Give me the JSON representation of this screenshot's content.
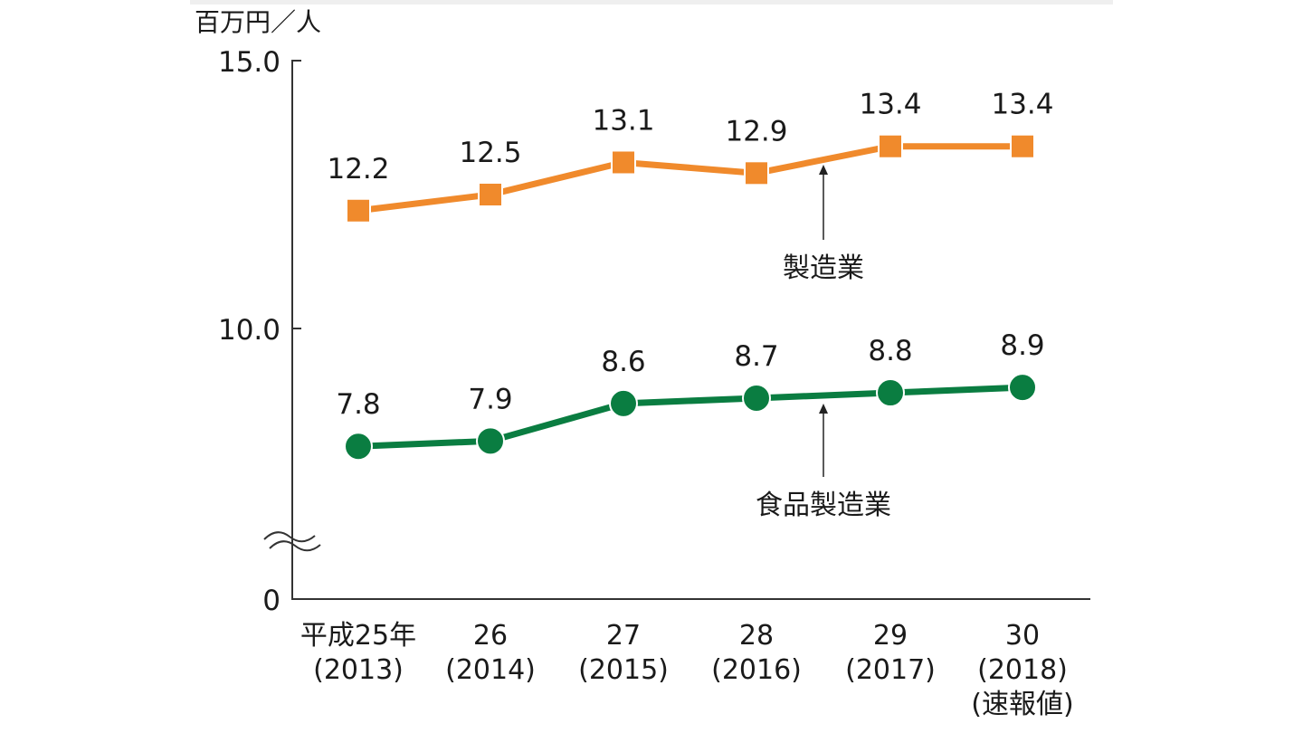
{
  "chart_data": {
    "type": "line",
    "ylabel": "百万円／人",
    "ylim": [
      0,
      15
    ],
    "y_axis_break": true,
    "yticks": [
      "0",
      "10.0",
      "15.0"
    ],
    "categories": [
      [
        "平成25年",
        "(2013)"
      ],
      [
        "26",
        "(2014)"
      ],
      [
        "27",
        "(2015)"
      ],
      [
        "28",
        "(2016)"
      ],
      [
        "29",
        "(2017)"
      ],
      [
        "30",
        "(2018)",
        "(速報値)"
      ]
    ],
    "series": [
      {
        "name": "製造業",
        "values": [
          12.2,
          12.5,
          13.1,
          12.9,
          13.4,
          13.4
        ],
        "labels": [
          "12.2",
          "12.5",
          "13.1",
          "12.9",
          "13.4",
          "13.4"
        ],
        "color": "#f08a2c",
        "marker": "square"
      },
      {
        "name": "食品製造業",
        "values": [
          7.8,
          7.9,
          8.6,
          8.7,
          8.8,
          8.9
        ],
        "labels": [
          "7.8",
          "7.9",
          "8.6",
          "8.7",
          "8.8",
          "8.9"
        ],
        "color": "#0a7d41",
        "marker": "circle"
      }
    ],
    "grid": false,
    "legend": "annotations with arrows"
  }
}
